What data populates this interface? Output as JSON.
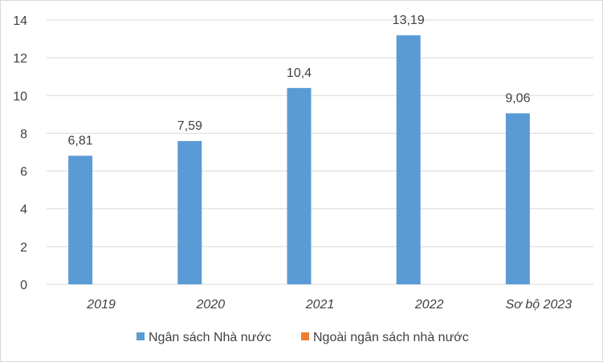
{
  "chart_data": {
    "type": "bar",
    "categories": [
      "2019",
      "2020",
      "2021",
      "2022",
      "Sơ bộ 2023"
    ],
    "series": [
      {
        "name": "Ngân sách Nhà nước",
        "values": [
          6.81,
          7.59,
          10.4,
          13.19,
          9.06
        ],
        "value_labels": [
          "6,81",
          "7,59",
          "10,4",
          "13,19",
          "9,06"
        ],
        "color": "#5b9bd5"
      },
      {
        "name": "Ngoài ngân sách nhà nước",
        "values": [
          0,
          0,
          0,
          0,
          0
        ],
        "color": "#ed7d31"
      }
    ],
    "ylim": [
      0,
      14
    ],
    "yticks": [
      0,
      2,
      4,
      6,
      8,
      10,
      12,
      14
    ],
    "grid": true,
    "legend_position": "bottom",
    "title": "",
    "xlabel": "",
    "ylabel": ""
  }
}
